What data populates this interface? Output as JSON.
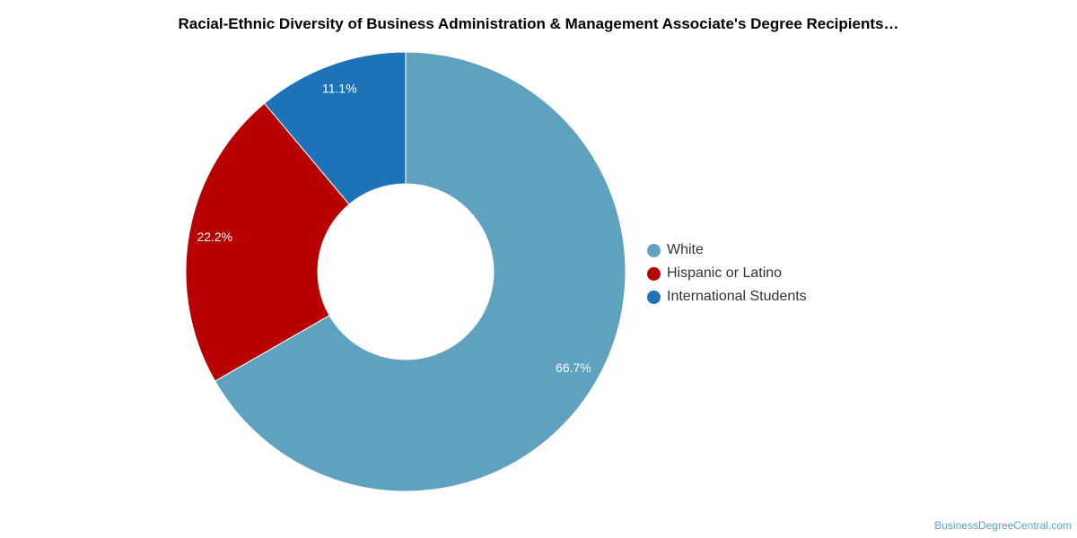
{
  "chart_data": {
    "type": "pie",
    "variant": "donut",
    "title": "Racial-Ethnic Diversity of Business Administration & Management Associate's Degree Recipients…",
    "slices": [
      {
        "label": "White",
        "value": 66.7,
        "value_label": "66.7%",
        "color": "#5ea2c0"
      },
      {
        "label": "Hispanic or Latino",
        "value": 22.2,
        "value_label": "22.2%",
        "color": "#b80000"
      },
      {
        "label": "International Students",
        "value": 11.1,
        "value_label": "11.1%",
        "color": "#1e73b8"
      }
    ],
    "legend_position": "right"
  },
  "watermark": "BusinessDegreeCentral.com"
}
